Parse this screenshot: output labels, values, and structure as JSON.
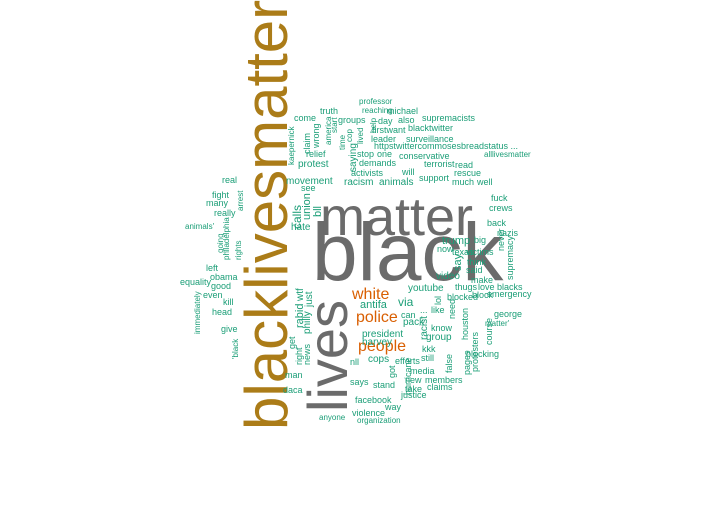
{
  "colors": {
    "big": "#6b6b6b",
    "accent": "#ab7c18",
    "mid": "#d95f02",
    "small": "#1b9e77"
  },
  "words": [
    {
      "text": "blacklivesmatter",
      "color": "accent",
      "rot": -90
    },
    {
      "text": "black",
      "color": "big",
      "rot": 0
    },
    {
      "text": "matter",
      "color": "big",
      "rot": 0
    },
    {
      "text": "lives",
      "color": "big",
      "rot": -90
    },
    {
      "text": "white",
      "color": "mid",
      "rot": 0
    },
    {
      "text": "police",
      "color": "mid",
      "rot": 0
    },
    {
      "text": "people",
      "color": "mid",
      "rot": 0
    },
    {
      "text": "antifa",
      "color": "small",
      "rot": 0
    },
    {
      "text": "via",
      "color": "small",
      "rot": 0
    },
    {
      "text": "trump",
      "color": "small",
      "rot": 0
    },
    {
      "text": "harvey",
      "color": "small",
      "rot": 0
    },
    {
      "text": "president",
      "color": "small",
      "rot": 0
    },
    {
      "text": "youtube",
      "color": "small",
      "rot": 0
    },
    {
      "text": "group",
      "color": "small",
      "rot": 0
    },
    {
      "text": "pack",
      "color": "small",
      "rot": 0
    },
    {
      "text": "cops",
      "color": "small",
      "rot": 0
    },
    {
      "text": "video",
      "color": "small",
      "rot": 0
    },
    {
      "text": "demands",
      "color": "small",
      "rot": 0
    },
    {
      "text": "racism",
      "color": "small",
      "rot": 0
    },
    {
      "text": "animals",
      "color": "small",
      "rot": 0
    },
    {
      "text": "activists",
      "color": "small",
      "rot": 0
    },
    {
      "text": "movement",
      "color": "small",
      "rot": 0
    },
    {
      "text": "protest",
      "color": "small",
      "rot": 0
    },
    {
      "text": "hate",
      "color": "small",
      "rot": 0
    },
    {
      "text": "bll",
      "color": "small",
      "rot": -90
    },
    {
      "text": "union",
      "color": "small",
      "rot": -90
    },
    {
      "text": "calls",
      "color": "small",
      "rot": -90
    },
    {
      "text": "rabid",
      "color": "small",
      "rot": -90
    },
    {
      "text": "wtf",
      "color": "small",
      "rot": -90
    },
    {
      "text": "philly",
      "color": "small",
      "rot": -90
    },
    {
      "text": "just",
      "color": "small",
      "rot": -90
    },
    {
      "text": "racist",
      "color": "small",
      "rot": -90
    },
    {
      "text": "kkk",
      "color": "small",
      "rot": 0
    },
    {
      "text": "know",
      "color": "small",
      "rot": 0
    },
    {
      "text": "say",
      "color": "small",
      "rot": -90
    },
    {
      "text": "like",
      "color": "small",
      "rot": 0
    },
    {
      "text": "...",
      "color": "small",
      "rot": 0
    },
    {
      "text": "now",
      "color": "small",
      "rot": 0
    },
    {
      "text": "texas",
      "color": "small",
      "rot": 0
    },
    {
      "text": "victims",
      "color": "small",
      "rot": 0
    },
    {
      "text": "big",
      "color": "small",
      "rot": 0
    },
    {
      "text": "think",
      "color": "small",
      "rot": 0
    },
    {
      "text": "said",
      "color": "small",
      "rot": 0
    },
    {
      "text": "make",
      "color": "small",
      "rot": 0
    },
    {
      "text": "thugs",
      "color": "small",
      "rot": 0
    },
    {
      "text": "love",
      "color": "small",
      "rot": 0
    },
    {
      "text": "blacks",
      "color": "small",
      "rot": 0
    },
    {
      "text": "blocked",
      "color": "small",
      "rot": 0
    },
    {
      "text": "block",
      "color": "small",
      "rot": 0
    },
    {
      "text": "emergency",
      "color": "small",
      "rot": 0
    },
    {
      "text": "george",
      "color": "small",
      "rot": 0
    },
    {
      "text": "matter'",
      "color": "small",
      "rot": 0
    },
    {
      "text": "blocking",
      "color": "small",
      "rot": 0
    },
    {
      "text": "can",
      "color": "small",
      "rot": 0
    },
    {
      "text": "efforts",
      "color": "small",
      "rot": 0
    },
    {
      "text": "still",
      "color": "small",
      "rot": 0
    },
    {
      "text": "media",
      "color": "small",
      "rot": 0
    },
    {
      "text": "new",
      "color": "small",
      "rot": 0
    },
    {
      "text": "members",
      "color": "small",
      "rot": 0
    },
    {
      "text": "take",
      "color": "small",
      "rot": 0
    },
    {
      "text": "claims",
      "color": "small",
      "rot": 0
    },
    {
      "text": "justice",
      "color": "small",
      "rot": 0
    },
    {
      "text": "stand",
      "color": "small",
      "rot": 0
    },
    {
      "text": "says",
      "color": "small",
      "rot": 0
    },
    {
      "text": "way",
      "color": "small",
      "rot": 0
    },
    {
      "text": "facebook",
      "color": "small",
      "rot": 0
    },
    {
      "text": "violence",
      "color": "small",
      "rot": 0
    },
    {
      "text": "anyone",
      "color": "small",
      "rot": 0
    },
    {
      "text": "organization",
      "color": "small",
      "rot": 0
    },
    {
      "text": "nll",
      "color": "small",
      "rot": 0
    },
    {
      "text": "man",
      "color": "small",
      "rot": 0
    },
    {
      "text": "daca",
      "color": "small",
      "rot": 0
    },
    {
      "text": "get",
      "color": "small",
      "rot": -90
    },
    {
      "text": "right",
      "color": "small",
      "rot": -90
    },
    {
      "text": "news",
      "color": "small",
      "rot": -90
    },
    {
      "text": "got",
      "color": "small",
      "rot": -90
    },
    {
      "text": "hurricane",
      "color": "small",
      "rot": -90
    },
    {
      "text": "false",
      "color": "small",
      "rot": -90
    },
    {
      "text": "pages",
      "color": "small",
      "rot": -90
    },
    {
      "text": "protesters",
      "color": "small",
      "rot": -90
    },
    {
      "text": "course",
      "color": "small",
      "rot": -90
    },
    {
      "text": "houston",
      "color": "small",
      "rot": -90
    },
    {
      "text": "need",
      "color": "small",
      "rot": -90
    },
    {
      "text": "lol",
      "color": "small",
      "rot": -90
    },
    {
      "text": "supremacy",
      "color": "small",
      "rot": -90
    },
    {
      "text": "never",
      "color": "small",
      "rot": -90
    },
    {
      "text": "nazis",
      "color": "small",
      "rot": 0
    },
    {
      "text": "back",
      "color": "small",
      "rot": 0
    },
    {
      "text": "crews",
      "color": "small",
      "rot": 0
    },
    {
      "text": "fuck",
      "color": "small",
      "rot": 0
    },
    {
      "text": "much",
      "color": "small",
      "rot": 0
    },
    {
      "text": "well",
      "color": "small",
      "rot": 0
    },
    {
      "text": "rescue",
      "color": "small",
      "rot": 0
    },
    {
      "text": "read",
      "color": "small",
      "rot": 0
    },
    {
      "text": "support",
      "color": "small",
      "rot": 0
    },
    {
      "text": "terrorist",
      "color": "small",
      "rot": 0
    },
    {
      "text": "conservative",
      "color": "small",
      "rot": 0
    },
    {
      "text": "will",
      "color": "small",
      "rot": 0
    },
    {
      "text": "stop",
      "color": "small",
      "rot": 0
    },
    {
      "text": "one",
      "color": "small",
      "rot": 0
    },
    {
      "text": "leader",
      "color": "small",
      "rot": 0
    },
    {
      "text": "surveillance",
      "color": "small",
      "rot": 0
    },
    {
      "text": "alllivesmatter",
      "color": "small",
      "rot": 0
    },
    {
      "text": "httpstwittercommosesbreadstatus ...",
      "color": "small",
      "rot": 0
    },
    {
      "text": "blacktwitter",
      "color": "small",
      "rot": 0
    },
    {
      "text": "firstwant",
      "color": "small",
      "rot": 0
    },
    {
      "text": "supremacists",
      "color": "small",
      "rot": 0
    },
    {
      "text": "day",
      "color": "small",
      "rot": 0
    },
    {
      "text": "also",
      "color": "small",
      "rot": 0
    },
    {
      "text": "michael",
      "color": "small",
      "rot": 0
    },
    {
      "text": "reaching",
      "color": "small",
      "rot": 0
    },
    {
      "text": "professor",
      "color": "small",
      "rot": 0
    },
    {
      "text": "groups",
      "color": "small",
      "rot": 0
    },
    {
      "text": "truth",
      "color": "small",
      "rot": 0
    },
    {
      "text": "come",
      "color": "small",
      "rot": 0
    },
    {
      "text": "start",
      "color": "small",
      "rot": -90
    },
    {
      "text": "help",
      "color": "small",
      "rot": -90
    },
    {
      "text": "time",
      "color": "small",
      "rot": -90
    },
    {
      "text": "cop",
      "color": "small",
      "rot": -90
    },
    {
      "text": "lived",
      "color": "small",
      "rot": -90
    },
    {
      "text": "saying",
      "color": "small",
      "rot": -90
    },
    {
      "text": "america",
      "color": "small",
      "rot": -90
    },
    {
      "text": "wrong",
      "color": "small",
      "rot": -90
    },
    {
      "text": "claim",
      "color": "small",
      "rot": -90
    },
    {
      "text": "relief",
      "color": "small",
      "rot": 0
    },
    {
      "text": "kaepernick",
      "color": "small",
      "rot": -90
    },
    {
      "text": "see",
      "color": "small",
      "rot": 0
    },
    {
      "text": "real",
      "color": "small",
      "rot": 0
    },
    {
      "text": "fight",
      "color": "small",
      "rot": 0
    },
    {
      "text": "many",
      "color": "small",
      "rot": 0
    },
    {
      "text": "really",
      "color": "small",
      "rot": 0
    },
    {
      "text": "arrest",
      "color": "small",
      "rot": -90
    },
    {
      "text": "animals'",
      "color": "small",
      "rot": 0
    },
    {
      "text": "going",
      "color": "small",
      "rot": -90
    },
    {
      "text": "philadelphia",
      "color": "small",
      "rot": -90
    },
    {
      "text": "rights",
      "color": "small",
      "rot": -90
    },
    {
      "text": "left",
      "color": "small",
      "rot": 0
    },
    {
      "text": "obama",
      "color": "small",
      "rot": 0
    },
    {
      "text": "equality",
      "color": "small",
      "rot": 0
    },
    {
      "text": "good",
      "color": "small",
      "rot": 0
    },
    {
      "text": "even",
      "color": "small",
      "rot": 0
    },
    {
      "text": "kill",
      "color": "small",
      "rot": 0
    },
    {
      "text": "head",
      "color": "small",
      "rot": 0
    },
    {
      "text": "immediately",
      "color": "small",
      "rot": -90
    },
    {
      "text": "give",
      "color": "small",
      "rot": 0
    },
    {
      "text": "'black",
      "color": "small",
      "rot": -90
    }
  ]
}
